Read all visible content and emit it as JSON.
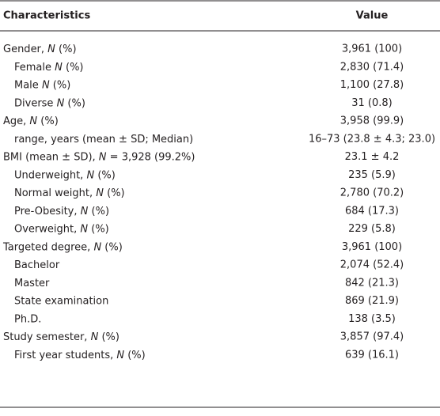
{
  "table": {
    "header": {
      "label": "Characteristics",
      "value": "Value"
    },
    "groups": [
      {
        "label": [
          "Gender, ",
          "N",
          " (%)"
        ],
        "value": "3,961 (100)",
        "children": [
          {
            "label": [
              "Female ",
              "N",
              " (%)"
            ],
            "value": "2,830 (71.4)"
          },
          {
            "label": [
              "Male ",
              "N",
              " (%)"
            ],
            "value": "1,100 (27.8)"
          },
          {
            "label": [
              "Diverse ",
              "N",
              " (%)"
            ],
            "value": "31 (0.8)"
          }
        ]
      },
      {
        "label": [
          "Age, ",
          "N",
          " (%)"
        ],
        "value": "3,958 (99.9)",
        "children": [
          {
            "label": [
              "range, years (mean ± SD; Median)"
            ],
            "value": "16–73 (23.8 ± 4.3; 23.0)"
          }
        ]
      },
      {
        "label": [
          "BMI (mean ± SD), ",
          "N",
          " = 3,928 (99.2%)"
        ],
        "value": "23.1 ± 4.2",
        "children": [
          {
            "label": [
              "Underweight, ",
              "N",
              " (%)"
            ],
            "value": "235 (5.9)"
          },
          {
            "label": [
              "Normal weight, ",
              "N",
              " (%)"
            ],
            "value": "2,780 (70.2)"
          },
          {
            "label": [
              "Pre-Obesity, ",
              "N",
              " (%)"
            ],
            "value": "684 (17.3)"
          },
          {
            "label": [
              "Overweight, ",
              "N",
              " (%)"
            ],
            "value": "229 (5.8)"
          }
        ]
      },
      {
        "label": [
          "Targeted degree, ",
          "N",
          " (%)"
        ],
        "value": "3,961 (100)",
        "children": [
          {
            "label": [
              "Bachelor"
            ],
            "value": "2,074 (52.4)"
          },
          {
            "label": [
              "Master"
            ],
            "value": "842 (21.3)"
          },
          {
            "label": [
              "State examination"
            ],
            "value": "869 (21.9)"
          },
          {
            "label": [
              "Ph.D."
            ],
            "value": "138 (3.5)"
          }
        ]
      },
      {
        "label": [
          "Study semester, ",
          "N",
          " (%)"
        ],
        "value": "3,857 (97.4)",
        "children": [
          {
            "label": [
              "First year students, ",
              "N",
              " (%)"
            ],
            "value": "639 (16.1)"
          }
        ]
      }
    ]
  }
}
